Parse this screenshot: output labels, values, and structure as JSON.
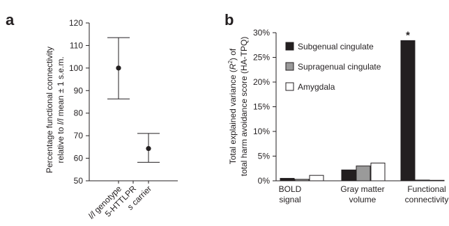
{
  "panels": {
    "a": "a",
    "b": "b"
  },
  "chart_data": [
    {
      "type": "errorbar",
      "ylabel_line1": "Percentage functional connectivity",
      "ylabel_line2_pre": "relative to ",
      "ylabel_line2_italic": "l/l",
      "ylabel_line2_post": " mean ± 1 s.e.m.",
      "ylim": [
        50,
        120
      ],
      "yticks": [
        50,
        60,
        70,
        80,
        90,
        100,
        110,
        120
      ],
      "categories": [
        {
          "italic": "l/l",
          "rest": " genotype"
        },
        {
          "italic": "",
          "rest": "5-HTTLPR"
        },
        {
          "italic": "s",
          "rest": " carrier"
        }
      ],
      "points": [
        {
          "category_index": 0,
          "mean": 100,
          "lower": 86.3,
          "upper": 113.5
        },
        {
          "category_index": 2,
          "mean": 64.3,
          "lower": 58.2,
          "upper": 71.0
        }
      ]
    },
    {
      "type": "bar",
      "ylabel_line1_pre": "Total explained variance (",
      "ylabel_line1_R": "R",
      "ylabel_line1_sup": "2",
      "ylabel_line1_post": ") of",
      "ylabel_line2": "total harm avoidance score (HA-TPQ)",
      "ylim": [
        0,
        30
      ],
      "yticks": [
        "0%",
        "5%",
        "10%",
        "15%",
        "20%",
        "25%",
        "30%"
      ],
      "categories": [
        [
          "BOLD",
          "signal"
        ],
        [
          "Gray matter",
          "volume"
        ],
        [
          "Functional",
          "connectivity"
        ]
      ],
      "series": [
        {
          "name": "Subgenual cingulate",
          "color": "#231f20",
          "values": [
            0.5,
            2.2,
            28.4
          ]
        },
        {
          "name": "Supragenual cingulate",
          "color": "#9a9a9a",
          "values": [
            0.3,
            3.0,
            0.15
          ]
        },
        {
          "name": "Amygdala",
          "color": "#ffffff",
          "values": [
            1.1,
            3.6,
            0.1
          ]
        }
      ],
      "annotation": "*"
    }
  ]
}
